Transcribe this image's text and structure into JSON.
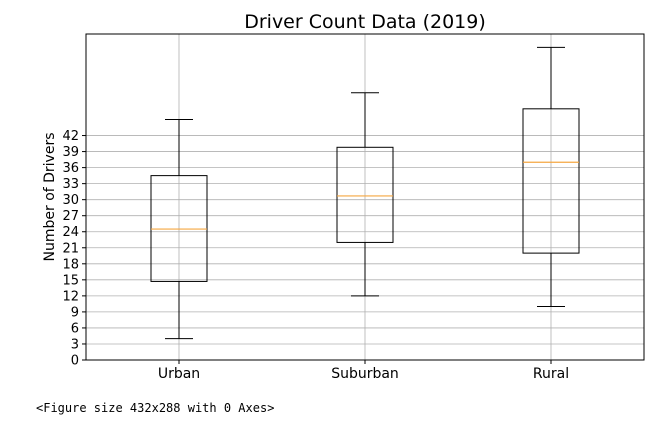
{
  "chart_data": {
    "type": "box",
    "title": "Driver Count Data (2019)",
    "ylabel": "Number of Drivers",
    "xlabel": "",
    "ylim": [
      0,
      61
    ],
    "yticks": [
      0,
      3,
      6,
      9,
      12,
      15,
      18,
      21,
      24,
      27,
      30,
      33,
      36,
      39,
      42
    ],
    "grid": true,
    "categories": [
      "Urban",
      "Suburban",
      "Rural"
    ],
    "boxes": [
      {
        "category": "Urban",
        "whisker_low": 4,
        "q1": 14.7,
        "median": 24.5,
        "q3": 34.5,
        "whisker_high": 45
      },
      {
        "category": "Suburban",
        "whisker_low": 12,
        "q1": 22,
        "median": 30.7,
        "q3": 39.8,
        "whisker_high": 50
      },
      {
        "category": "Rural",
        "whisker_low": 10,
        "q1": 20,
        "median": 37,
        "q3": 47,
        "whisker_high": 58.5
      }
    ],
    "colors": {
      "box": "#000000",
      "median": "#f5a742",
      "grid": "#b0b0b0"
    }
  },
  "output_caption": "<Figure size 432x288 with 0 Axes>"
}
